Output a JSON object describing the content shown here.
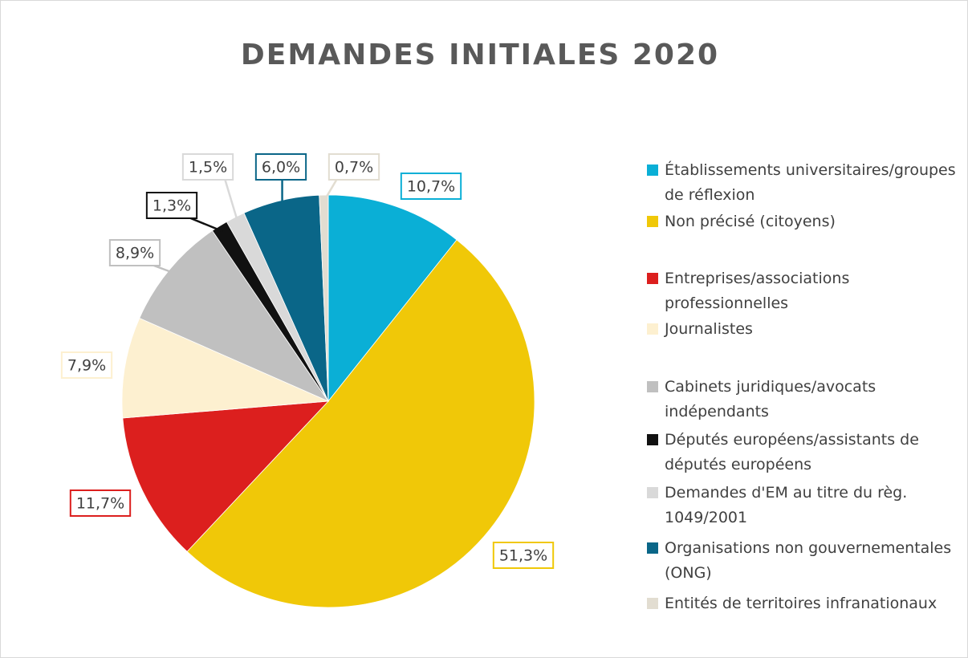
{
  "chart_data": {
    "type": "pie",
    "title": "DEMANDES INITIALES 2020",
    "categories": [
      "Établissements universitaires/groupes de réflexion",
      "Non précisé (citoyens)",
      "Entreprises/associations professionnelles",
      "Journalistes",
      "Cabinets juridiques/avocats indépendants",
      "Députés européens/assistants de députés européens",
      "Demandes d'EM au titre du règ. 1049/2001",
      "Organisations non gouvernementales (ONG)",
      "Entités de territoires infranationaux"
    ],
    "values": [
      10.7,
      51.3,
      11.7,
      7.9,
      8.9,
      1.3,
      1.5,
      6.0,
      0.7
    ],
    "value_labels": [
      "10,7%",
      "51,3%",
      "11,7%",
      "7,9%",
      "8,9%",
      "1,3%",
      "1,5%",
      "6,0%",
      "0,7%"
    ],
    "colors": [
      "#0aafd6",
      "#f0c808",
      "#dc1f1e",
      "#fdf0d0",
      "#c0c0c0",
      "#111111",
      "#d9d9d9",
      "#0a6688",
      "#e2ddd1"
    ],
    "legend": "right"
  }
}
